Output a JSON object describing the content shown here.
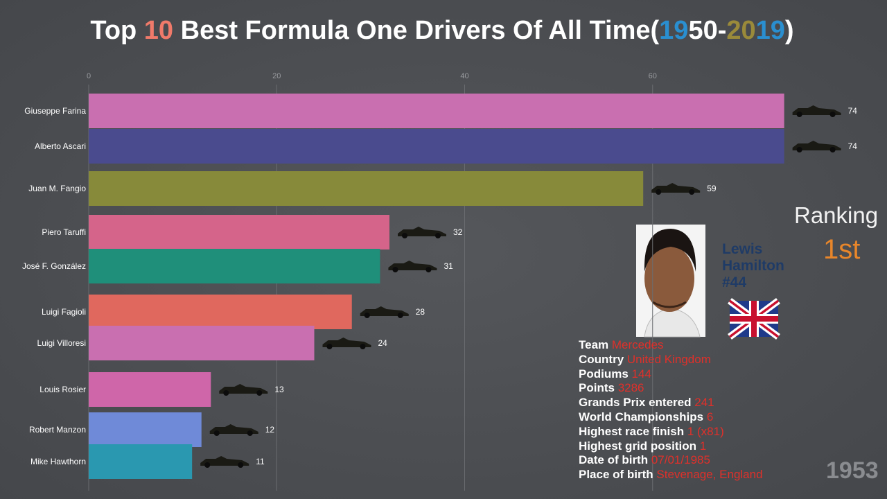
{
  "chart_data": {
    "type": "bar",
    "orientation": "horizontal",
    "title": [
      {
        "text": "Top ",
        "color": "#ffffff"
      },
      {
        "text": "10",
        "color": "#f07a6a"
      },
      {
        "text": " Best Formula One Drivers Of All Time(",
        "color": "#ffffff"
      },
      {
        "text": "19",
        "color": "#2a8fd0"
      },
      {
        "text": "50-",
        "color": "#ffffff"
      },
      {
        "text": "20",
        "color": "#9a8a3a"
      },
      {
        "text": "19",
        "color": "#2a8fd0"
      },
      {
        "text": ")",
        "color": "#ffffff"
      }
    ],
    "categories": [
      "Giuseppe Farina",
      "Alberto Ascari",
      "Juan M. Fangio",
      "Piero Taruffi",
      "José F. González",
      "Luigi Fagioli",
      "Luigi Villoresi",
      "Louis Rosier",
      "Robert Manzon",
      "Mike Hawthorn"
    ],
    "values": [
      74,
      74,
      59,
      32,
      31,
      28,
      24,
      13,
      12,
      11
    ],
    "colors": [
      "#c96fb0",
      "#4a4b8e",
      "#878a3a",
      "#d5648a",
      "#1f8f7a",
      "#e0685e",
      "#c96fb0",
      "#cf66a9",
      "#6f8ad8",
      "#2a98b0"
    ],
    "xlim": [
      0,
      80
    ],
    "xticks": [
      0,
      20,
      40,
      60
    ],
    "grid": true
  },
  "panel": {
    "ranking_label": "Ranking",
    "rank": "1st",
    "driver_name": "Lewis Hamilton",
    "driver_number": "#44",
    "details": [
      {
        "label": "Team",
        "value": "Mercedes"
      },
      {
        "label": "Country",
        "value": "United Kingdom"
      },
      {
        "label": "Podiums",
        "value": 144
      },
      {
        "label": "Points",
        "value": 3286
      },
      {
        "label": "Grands Prix entered",
        "value": 241
      },
      {
        "label": "World Championships",
        "value": 6
      },
      {
        "label": "Highest race finish",
        "value": "1 (x81)"
      },
      {
        "label": "Highest grid position",
        "value": 1
      },
      {
        "label": "Date of birth",
        "value": "07/01/1985"
      },
      {
        "label": "Place of birth",
        "value": "Stevenage, England"
      }
    ],
    "year": 1953
  }
}
